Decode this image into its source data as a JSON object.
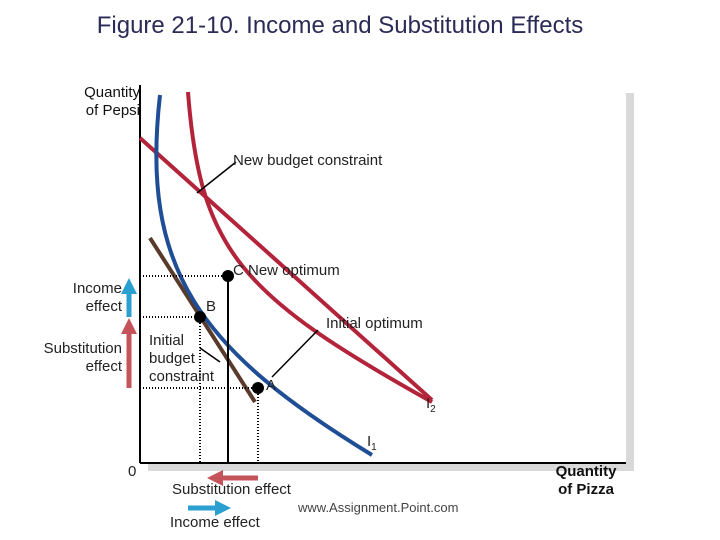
{
  "title": "Figure 21-10. Income and Substitution Effects",
  "axes": {
    "y_label_line1": "Quantity",
    "y_label_line2": "of Pepsi",
    "x_label_line1": "Quantity",
    "x_label_line2": "of Pizza",
    "origin": "0"
  },
  "annotations": {
    "new_budget_constraint": "New budget constraint",
    "new_optimum": "C  New optimum",
    "point_b": "B",
    "initial_optimum": "Initial optimum",
    "initial_budget_1": "Initial",
    "initial_budget_2": "budget",
    "initial_budget_3": "constraint",
    "point_a": "A",
    "curve_i2": "I",
    "curve_i2_sub": "2",
    "curve_i1": "I",
    "curve_i1_sub": "1"
  },
  "side_labels": {
    "income_effect_1": "Income",
    "income_effect_2": "effect",
    "substitution_effect_1": "Substitution",
    "substitution_effect_2": "effect"
  },
  "bottom_legend": {
    "substitution_effect": "Substitution effect",
    "income_effect": "Income effect"
  },
  "credit": "www.Assignment.Point.com",
  "colors": {
    "title": "#2b2b57",
    "new_budget_line": "#b3243a",
    "indifference_curve": "#b3243a",
    "initial_budget_line": "#5a3a2a",
    "blue_curve": "#1f4e96",
    "substitution_arrow": "#c4545a",
    "income_arrow": "#2a9fd0",
    "panel_shadow": "#d9d9d9"
  }
}
